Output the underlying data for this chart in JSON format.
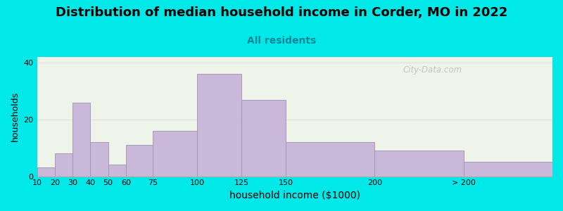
{
  "title": "Distribution of median household income in Corder, MO in 2022",
  "subtitle": "All residents",
  "xlabel": "household income ($1000)",
  "ylabel": "households",
  "bar_values": [
    3,
    8,
    26,
    12,
    4,
    11,
    16,
    36,
    27,
    12,
    9,
    5
  ],
  "bar_positions": [
    10,
    20,
    30,
    40,
    50,
    60,
    75,
    100,
    125,
    150,
    200,
    250
  ],
  "bar_widths": [
    10,
    10,
    10,
    10,
    10,
    15,
    25,
    25,
    25,
    50,
    50,
    50
  ],
  "bar_color": "#c9b8d8",
  "bar_edge_color": "#a090b8",
  "background_color": "#00e8e8",
  "plot_bg_color": "#eef5e8",
  "title_fontsize": 13,
  "subtitle_fontsize": 10,
  "subtitle_color": "#008899",
  "ylabel_fontsize": 9,
  "xlabel_fontsize": 10,
  "yticks": [
    0,
    20,
    40
  ],
  "ylim": [
    0,
    42
  ],
  "xtick_labels": [
    "10",
    "20",
    "30",
    "40",
    "50",
    "60",
    "75",
    "100",
    "125",
    "150",
    "200",
    "> 200"
  ],
  "watermark_text": "City-Data.com",
  "grid_color": "#dddddd",
  "xlim_left": 10,
  "xlim_right": 300
}
